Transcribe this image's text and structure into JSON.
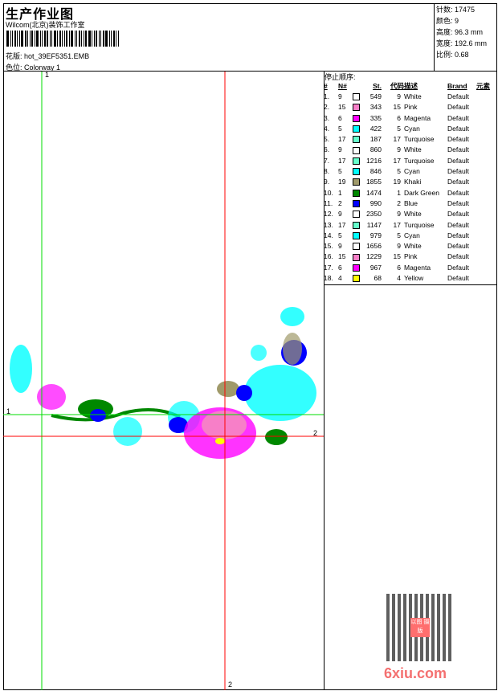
{
  "header": {
    "title": "生产作业图",
    "company": "Wilcom(北京)装饰工作室",
    "design_label": "花版:",
    "design_file": "hot_39EF5351.EMB",
    "colorway_label": "色位:",
    "colorway": "Colorway 1"
  },
  "info": [
    {
      "label": "针数:",
      "value": "17475"
    },
    {
      "label": "颜色:",
      "value": "9"
    },
    {
      "label": "高度:",
      "value": "96.3 mm"
    },
    {
      "label": "宽度:",
      "value": "192.6 mm"
    },
    {
      "label": "比例:",
      "value": "0.68"
    }
  ],
  "stop_sequence": {
    "title": "停止顺序:",
    "columns": [
      "#",
      "N#",
      "",
      "St.",
      "代码",
      "描述",
      "Brand",
      "元素"
    ],
    "rows": [
      {
        "idx": "1.",
        "n": "9",
        "color": "#ffffff",
        "st": "549",
        "code": "9",
        "desc": "White",
        "brand": "Default"
      },
      {
        "idx": "2.",
        "n": "15",
        "color": "#f77fc8",
        "st": "343",
        "code": "15",
        "desc": "Pink",
        "brand": "Default"
      },
      {
        "idx": "3.",
        "n": "6",
        "color": "#ff00ff",
        "st": "335",
        "code": "6",
        "desc": "Magenta",
        "brand": "Default"
      },
      {
        "idx": "4.",
        "n": "5",
        "color": "#00ffff",
        "st": "422",
        "code": "5",
        "desc": "Cyan",
        "brand": "Default"
      },
      {
        "idx": "5.",
        "n": "17",
        "color": "#66ffcc",
        "st": "187",
        "code": "17",
        "desc": "Turquoise",
        "brand": "Default"
      },
      {
        "idx": "6.",
        "n": "9",
        "color": "#ffffff",
        "st": "860",
        "code": "9",
        "desc": "White",
        "brand": "Default"
      },
      {
        "idx": "7.",
        "n": "17",
        "color": "#66ffcc",
        "st": "1216",
        "code": "17",
        "desc": "Turquoise",
        "brand": "Default"
      },
      {
        "idx": "8.",
        "n": "5",
        "color": "#00ffff",
        "st": "846",
        "code": "5",
        "desc": "Cyan",
        "brand": "Default"
      },
      {
        "idx": "9.",
        "n": "19",
        "color": "#a09a6a",
        "st": "1855",
        "code": "19",
        "desc": "Khaki",
        "brand": "Default"
      },
      {
        "idx": "10.",
        "n": "1",
        "color": "#008800",
        "st": "1474",
        "code": "1",
        "desc": "Dark Green",
        "brand": "Default"
      },
      {
        "idx": "11.",
        "n": "2",
        "color": "#0000ff",
        "st": "990",
        "code": "2",
        "desc": "Blue",
        "brand": "Default"
      },
      {
        "idx": "12.",
        "n": "9",
        "color": "#ffffff",
        "st": "2350",
        "code": "9",
        "desc": "White",
        "brand": "Default"
      },
      {
        "idx": "13.",
        "n": "17",
        "color": "#66ffcc",
        "st": "1147",
        "code": "17",
        "desc": "Turquoise",
        "brand": "Default"
      },
      {
        "idx": "14.",
        "n": "5",
        "color": "#00ffff",
        "st": "979",
        "code": "5",
        "desc": "Cyan",
        "brand": "Default"
      },
      {
        "idx": "15.",
        "n": "9",
        "color": "#ffffff",
        "st": "1656",
        "code": "9",
        "desc": "White",
        "brand": "Default"
      },
      {
        "idx": "16.",
        "n": "15",
        "color": "#f77fc8",
        "st": "1229",
        "code": "15",
        "desc": "Pink",
        "brand": "Default"
      },
      {
        "idx": "17.",
        "n": "6",
        "color": "#ff00ff",
        "st": "967",
        "code": "6",
        "desc": "Magenta",
        "brand": "Default"
      },
      {
        "idx": "18.",
        "n": "4",
        "color": "#ffff00",
        "st": "68",
        "code": "4",
        "desc": "Yellow",
        "brand": "Default"
      }
    ]
  },
  "guides": {
    "v1": "1",
    "h1": "1",
    "v2": "2",
    "h2": "2",
    "guide1_color": "#00dd00",
    "guide2_color": "#ff0000"
  },
  "watermark": {
    "text": "6xiu.com",
    "stamp": "以图 摄版"
  }
}
